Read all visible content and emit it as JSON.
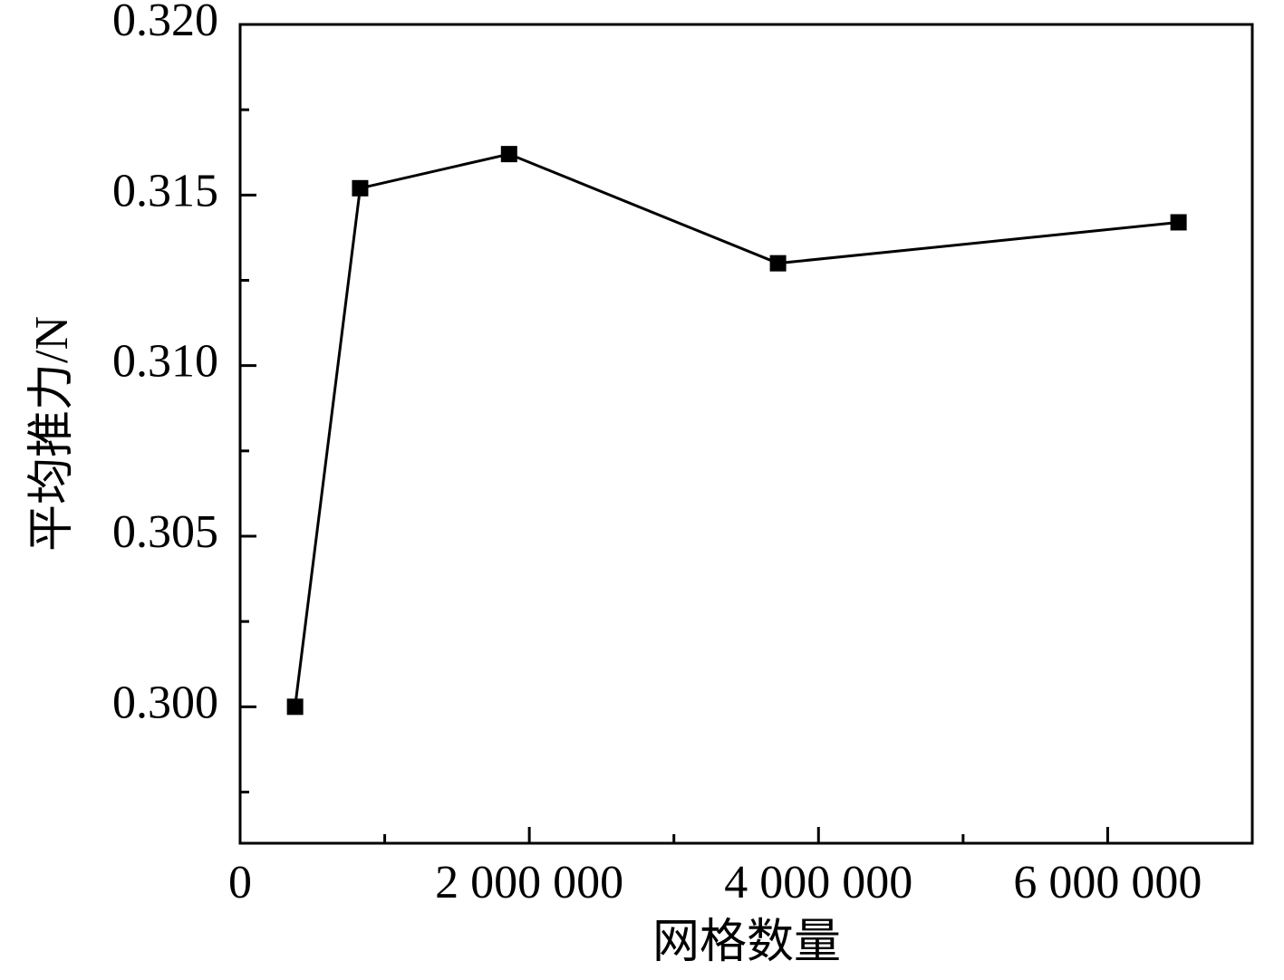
{
  "chart_data": {
    "type": "line",
    "x_label": "网格数量",
    "y_label": "平均推力/N",
    "x": [
      380000,
      830000,
      1860000,
      3720000,
      6490000
    ],
    "series": [
      {
        "color": "#000000",
        "values": [
          0.3,
          0.3152,
          0.3162,
          0.313,
          0.3142
        ]
      }
    ],
    "xlim": [
      0,
      7000000
    ],
    "xticks": [
      0,
      {
        "value": 2000000,
        "label": "2 000 000"
      },
      {
        "value": 4000000,
        "label": "4 000 000"
      },
      {
        "value": 6000000,
        "label": "6 000 000"
      }
    ],
    "xminorticks": [
      1000000,
      3000000,
      5000000
    ],
    "ylim": [
      0.296,
      0.32
    ],
    "yticks": [
      {
        "value": 0.3,
        "label": "0.300"
      },
      0.305,
      {
        "value": 0.31,
        "label": "0.310"
      },
      0.315,
      {
        "value": 0.32,
        "label": "0.320"
      }
    ],
    "yminorticks": [
      0.2975,
      0.3025,
      0.3075,
      0.3125,
      0.3175
    ],
    "marker": "square",
    "grid": false
  }
}
